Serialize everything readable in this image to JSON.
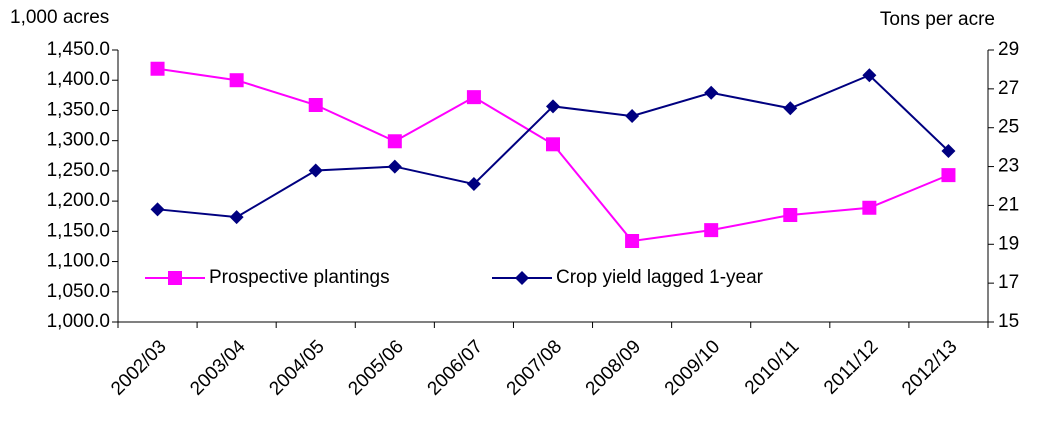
{
  "chart_data": {
    "type": "line",
    "y_label": "1,000 acres",
    "y2_label": "Tons per acre",
    "categories": [
      "2002/03",
      "2003/04",
      "2004/05",
      "2005/06",
      "2006/07",
      "2007/08",
      "2008/09",
      "2009/10",
      "2010/11",
      "2011/12",
      "2012/13"
    ],
    "series": [
      {
        "name": "Prospective plantings",
        "color": "#ff00ff",
        "marker": "square",
        "values": [
          1419,
          1400,
          1359,
          1299,
          1372,
          1294,
          1134,
          1152,
          1177,
          1189,
          1243
        ]
      },
      {
        "name": "Crop yield lagged 1-year",
        "color": "#000080",
        "marker": "diamond",
        "axis": "y2",
        "values": [
          20.8,
          20.4,
          22.8,
          23.0,
          22.1,
          26.1,
          25.6,
          26.8,
          26.0,
          27.7,
          23.8
        ]
      }
    ],
    "ylim": [
      1000,
      1450
    ],
    "yticks": [
      {
        "value": 1000,
        "label": "1,000.0"
      },
      {
        "value": 1050,
        "label": "1,050.0"
      },
      {
        "value": 1100,
        "label": "1,100.0"
      },
      {
        "value": 1150,
        "label": "1,150.0"
      },
      {
        "value": 1200,
        "label": "1,200.0"
      },
      {
        "value": 1250,
        "label": "1,250.0"
      },
      {
        "value": 1300,
        "label": "1,300.0"
      },
      {
        "value": 1350,
        "label": "1,350.0"
      },
      {
        "value": 1400,
        "label": "1,400.0"
      },
      {
        "value": 1450,
        "label": "1,450.0"
      }
    ],
    "y2lim": [
      15,
      29
    ],
    "y2ticks": [
      15,
      17,
      19,
      21,
      23,
      25,
      27,
      29
    ],
    "grid": false,
    "legend": "bottom-left"
  }
}
